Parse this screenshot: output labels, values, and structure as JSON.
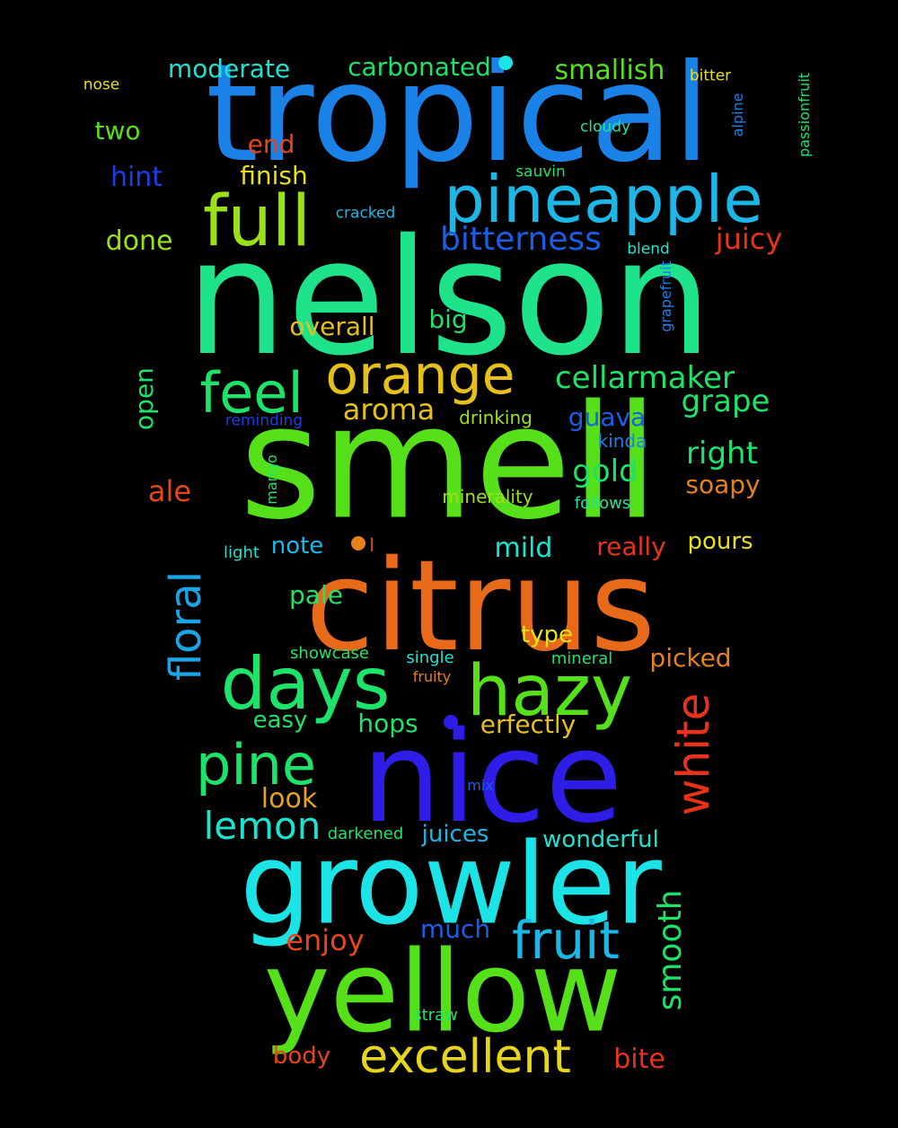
{
  "words": [
    {
      "text": "nelson",
      "color": "#1ee38a"
    },
    {
      "text": "smell",
      "color": "#55e01a"
    },
    {
      "text": "tropical",
      "color": "#1a82e6"
    },
    {
      "text": "citrus",
      "color": "#e66a1a"
    },
    {
      "text": "nice",
      "color": "#2e1de6"
    },
    {
      "text": "growler",
      "color": "#1ce3e6"
    },
    {
      "text": "yellow",
      "color": "#55e01a"
    },
    {
      "text": "pineapple",
      "color": "#1cb7e6"
    },
    {
      "text": "full",
      "color": "#9ce01a"
    },
    {
      "text": "days",
      "color": "#1ee36a"
    },
    {
      "text": "hazy",
      "color": "#55e01a"
    },
    {
      "text": "orange",
      "color": "#e6c01a"
    },
    {
      "text": "feel",
      "color": "#1ee36a"
    },
    {
      "text": "pine",
      "color": "#1ee36a"
    },
    {
      "text": "fruit",
      "color": "#1cb7e6"
    },
    {
      "text": "excellent",
      "color": "#e6d51a"
    },
    {
      "text": "white",
      "color": "#e6331a"
    },
    {
      "text": "floral",
      "color": "#1aa5e6"
    },
    {
      "text": "lemon",
      "color": "#1ce3d0"
    },
    {
      "text": "smooth",
      "color": "#1ee36a"
    },
    {
      "text": "bitterness",
      "color": "#1a5ee6"
    },
    {
      "text": "cellarmaker",
      "color": "#1ee36a"
    },
    {
      "text": "grape",
      "color": "#1ee36a"
    },
    {
      "text": "right",
      "color": "#1ee36a"
    },
    {
      "text": "gold",
      "color": "#1ee36a"
    },
    {
      "text": "aroma",
      "color": "#e6c01a"
    },
    {
      "text": "juicy",
      "color": "#e6331a"
    },
    {
      "text": "moderate",
      "color": "#1ce3d0"
    },
    {
      "text": "carbonated",
      "color": "#1ee36a"
    },
    {
      "text": "smallish",
      "color": "#55e01a"
    },
    {
      "text": "hint",
      "color": "#1a3ee6"
    },
    {
      "text": "done",
      "color": "#9ce01a"
    },
    {
      "text": "finish",
      "color": "#e6e01a"
    },
    {
      "text": "end",
      "color": "#e6461a"
    },
    {
      "text": "two",
      "color": "#55e01a"
    },
    {
      "text": "overall",
      "color": "#e6c01a"
    },
    {
      "text": "big",
      "color": "#1ee36a"
    },
    {
      "text": "open",
      "color": "#1ee36a"
    },
    {
      "text": "guava",
      "color": "#1a5ee6"
    },
    {
      "text": "ale",
      "color": "#e6461a"
    },
    {
      "text": "soapy",
      "color": "#e6821a"
    },
    {
      "text": "mild",
      "color": "#1ce3d0"
    },
    {
      "text": "really",
      "color": "#e6331a"
    },
    {
      "text": "pours",
      "color": "#e6e01a"
    },
    {
      "text": "note",
      "color": "#1cb7e6"
    },
    {
      "text": "pale",
      "color": "#1ee36a"
    },
    {
      "text": "type",
      "color": "#e6e01a"
    },
    {
      "text": "picked",
      "color": "#e6821a"
    },
    {
      "text": "easy",
      "color": "#1ee36a"
    },
    {
      "text": "hops",
      "color": "#1ee36a"
    },
    {
      "text": "erfectly",
      "color": "#e6c01a"
    },
    {
      "text": "look",
      "color": "#e6a11a"
    },
    {
      "text": "juices",
      "color": "#1cb7e6"
    },
    {
      "text": "wonderful",
      "color": "#1ce3d0"
    },
    {
      "text": "enjoy",
      "color": "#e6461a"
    },
    {
      "text": "much",
      "color": "#1a5ee6"
    },
    {
      "text": "body",
      "color": "#e6461a"
    },
    {
      "text": "bite",
      "color": "#e6331a"
    },
    {
      "text": "drinking",
      "color": "#9ce01a"
    },
    {
      "text": "minerality",
      "color": "#9ce01a"
    },
    {
      "text": "kinda",
      "color": "#1a82e6"
    },
    {
      "text": "follows",
      "color": "#1ee3a0"
    },
    {
      "text": "reminding",
      "color": "#1a3ee6"
    },
    {
      "text": "mango",
      "color": "#1ee36a"
    },
    {
      "text": "light",
      "color": "#1ce3d0"
    },
    {
      "text": "l",
      "color": "#e6461a"
    },
    {
      "text": "showcase",
      "color": "#1ee36a"
    },
    {
      "text": "single",
      "color": "#1ce3d0"
    },
    {
      "text": "mineral",
      "color": "#1ee36a"
    },
    {
      "text": "fruity",
      "color": "#e6821a"
    },
    {
      "text": "mix",
      "color": "#1a5ee6"
    },
    {
      "text": "darkened",
      "color": "#1ee36a"
    },
    {
      "text": "straw",
      "color": "#1ee36a"
    },
    {
      "text": "nose",
      "color": "#e6e01a"
    },
    {
      "text": "bitter",
      "color": "#e6e01a"
    },
    {
      "text": "cloudy",
      "color": "#1ee3a0"
    },
    {
      "text": "alpine",
      "color": "#1a82e6"
    },
    {
      "text": "passionfruit",
      "color": "#1ee36a"
    },
    {
      "text": "sauvin",
      "color": "#1ee36a"
    },
    {
      "text": "cracked",
      "color": "#1cb7e6"
    },
    {
      "text": "blend",
      "color": "#1ce3d0"
    },
    {
      "text": "grapefruit",
      "color": "#1a82e6"
    }
  ],
  "dots": [
    {
      "color": "#1ce3e6"
    },
    {
      "color": "#e6821a"
    },
    {
      "color": "#2e1de6"
    }
  ]
}
